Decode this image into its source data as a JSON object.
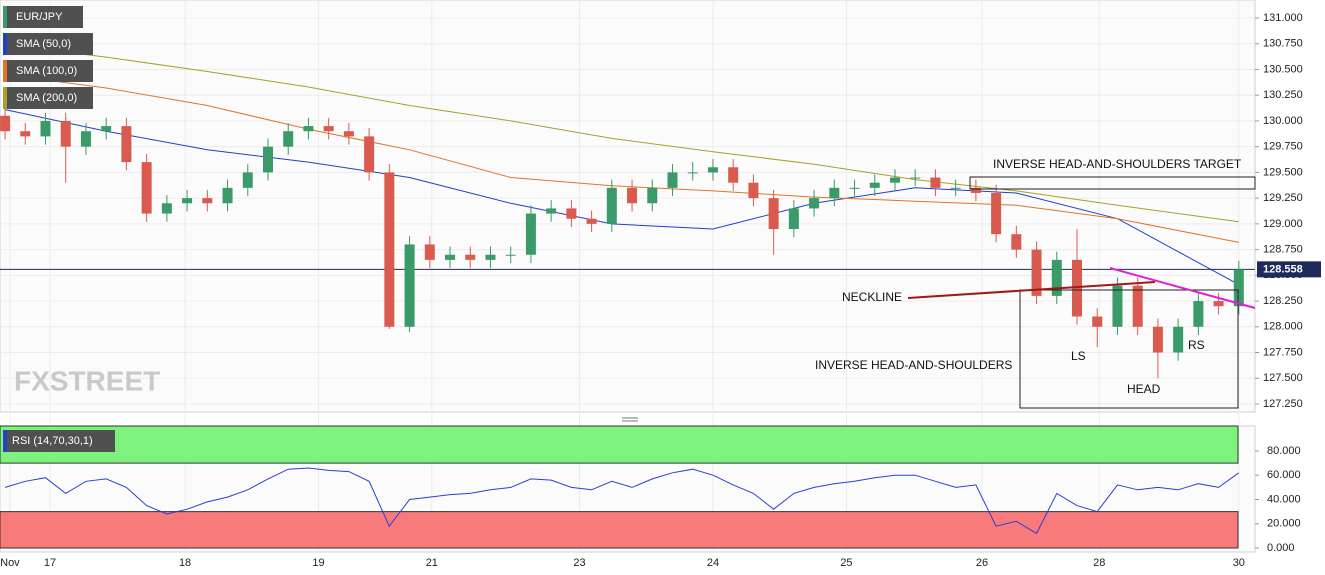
{
  "chart_data": [
    {
      "type": "candlestick",
      "symbol": "EUR/JPY",
      "up_color": "#3a9a68",
      "down_color": "#d95b50",
      "xlim": [
        -0.25,
        61.8
      ],
      "ylim": [
        127.172,
        131.175
      ],
      "xticks": [
        {
          "value": 0.24,
          "label": "Nov"
        },
        {
          "value": 2.22,
          "label": "17"
        },
        {
          "value": 8.9,
          "label": "18"
        },
        {
          "value": 15.5,
          "label": "19"
        },
        {
          "value": 21.1,
          "label": "21"
        },
        {
          "value": 28.4,
          "label": "23"
        },
        {
          "value": 35.0,
          "label": "24"
        },
        {
          "value": 41.6,
          "label": "25"
        },
        {
          "value": 48.3,
          "label": "26"
        },
        {
          "value": 54.1,
          "label": "28"
        },
        {
          "value": 61.0,
          "label": "30"
        }
      ],
      "yticks": [
        {
          "value": 127.25,
          "label": "127.250"
        },
        {
          "value": 127.5,
          "label": "127.500"
        },
        {
          "value": 127.75,
          "label": "127.750"
        },
        {
          "value": 128.0,
          "label": "128.000"
        },
        {
          "value": 128.25,
          "label": "128.250"
        },
        {
          "value": 128.5,
          "label": "128.500"
        },
        {
          "value": 128.75,
          "label": "128.750"
        },
        {
          "value": 129.0,
          "label": "129.000"
        },
        {
          "value": 129.25,
          "label": "129.250"
        },
        {
          "value": 129.5,
          "label": "129.500"
        },
        {
          "value": 129.75,
          "label": "129.750"
        },
        {
          "value": 130.0,
          "label": "130.000"
        },
        {
          "value": 130.25,
          "label": "130.250"
        },
        {
          "value": 130.5,
          "label": "130.500"
        },
        {
          "value": 130.75,
          "label": "130.750"
        },
        {
          "value": 131.0,
          "label": "131.000"
        }
      ],
      "grid": true,
      "last_price": 128.558,
      "open": [
        130.05,
        129.9,
        129.85,
        130.0,
        129.75,
        129.9,
        129.95,
        129.6,
        129.1,
        129.2,
        129.25,
        129.2,
        129.35,
        129.5,
        129.75,
        129.9,
        129.95,
        129.9,
        129.85,
        129.5,
        128.0,
        128.8,
        128.65,
        128.7,
        128.65,
        128.7,
        128.7,
        129.1,
        129.15,
        129.05,
        129.0,
        129.35,
        129.2,
        129.35,
        129.5,
        129.5,
        129.55,
        129.4,
        129.25,
        128.95,
        129.15,
        129.25,
        129.35,
        129.35,
        129.4,
        129.45,
        129.45,
        129.35,
        129.35,
        129.3,
        128.9,
        128.75,
        128.3,
        128.65,
        128.1,
        128.0,
        128.4,
        128.0,
        127.75,
        128.0,
        128.25,
        128.2
      ],
      "high": [
        130.13,
        129.98,
        130.08,
        130.08,
        129.98,
        130.03,
        130.03,
        129.68,
        129.28,
        129.33,
        129.33,
        129.43,
        129.58,
        129.83,
        129.98,
        130.03,
        130.03,
        129.98,
        129.93,
        129.58,
        128.88,
        128.88,
        128.78,
        128.78,
        128.78,
        128.78,
        129.18,
        129.23,
        129.23,
        129.13,
        129.43,
        129.43,
        129.43,
        129.58,
        129.6,
        129.63,
        129.63,
        129.48,
        129.33,
        129.23,
        129.33,
        129.43,
        129.43,
        129.48,
        129.53,
        129.53,
        129.53,
        129.43,
        129.43,
        129.38,
        128.98,
        128.83,
        128.73,
        128.95,
        128.18,
        128.48,
        128.48,
        128.08,
        128.08,
        128.33,
        128.33,
        128.64
      ],
      "low": [
        129.82,
        129.77,
        129.77,
        129.4,
        129.67,
        129.82,
        129.52,
        129.02,
        129.02,
        129.12,
        129.12,
        129.12,
        129.27,
        129.42,
        129.67,
        129.82,
        129.82,
        129.77,
        129.42,
        127.98,
        127.95,
        128.57,
        128.57,
        128.57,
        128.57,
        128.62,
        128.62,
        129.02,
        128.97,
        128.92,
        128.92,
        129.12,
        129.12,
        129.27,
        129.42,
        129.42,
        129.32,
        129.17,
        128.7,
        128.87,
        129.07,
        129.17,
        129.27,
        129.27,
        129.32,
        129.37,
        129.27,
        129.27,
        129.22,
        128.82,
        128.67,
        128.22,
        128.22,
        128.02,
        127.8,
        127.92,
        127.92,
        127.5,
        127.67,
        127.92,
        128.12,
        128.12
      ],
      "close": [
        129.9,
        129.85,
        130.0,
        129.75,
        129.9,
        129.95,
        129.6,
        129.1,
        129.2,
        129.25,
        129.2,
        129.35,
        129.5,
        129.75,
        129.9,
        129.95,
        129.9,
        129.85,
        129.5,
        128.0,
        128.8,
        128.65,
        128.7,
        128.65,
        128.7,
        128.7,
        129.1,
        129.15,
        129.05,
        129.0,
        129.35,
        129.2,
        129.35,
        129.5,
        129.5,
        129.55,
        129.4,
        129.25,
        128.95,
        129.15,
        129.25,
        129.35,
        129.35,
        129.4,
        129.45,
        129.45,
        129.35,
        129.35,
        129.3,
        128.9,
        128.75,
        128.3,
        128.65,
        128.1,
        128.0,
        128.4,
        128.0,
        127.75,
        128.0,
        128.25,
        128.2,
        128.558
      ],
      "series": [
        {
          "name": "SMA (50,0)",
          "color": "#2140c8",
          "x": [
            0,
            5,
            10,
            15,
            20,
            25,
            30,
            35,
            40,
            45,
            50,
            55,
            61
          ],
          "values": [
            130.11,
            129.9,
            129.72,
            129.6,
            129.45,
            129.2,
            129.0,
            128.95,
            129.2,
            129.35,
            129.3,
            129.05,
            128.41
          ]
        },
        {
          "name": "SMA (100,0)",
          "color": "#e0742a",
          "x": [
            0,
            5,
            10,
            15,
            20,
            25,
            30,
            35,
            40,
            45,
            50,
            55,
            61
          ],
          "values": [
            130.45,
            130.32,
            130.15,
            129.92,
            129.72,
            129.45,
            129.37,
            129.32,
            129.26,
            129.22,
            129.18,
            129.05,
            128.82
          ]
        },
        {
          "name": "SMA (200,0)",
          "color": "#a8a02a",
          "x": [
            0,
            5,
            10,
            15,
            20,
            25,
            30,
            35,
            40,
            45,
            50,
            55,
            61
          ],
          "values": [
            130.74,
            130.62,
            130.48,
            130.33,
            130.15,
            130.0,
            129.83,
            129.7,
            129.58,
            129.43,
            129.32,
            129.18,
            129.02
          ]
        }
      ],
      "annotations": {
        "target": "INVERSE HEAD-AND-SHOULDERS TARGET",
        "neckline": "NECKLINE",
        "pattern": "INVERSE HEAD-AND-SHOULDERS",
        "ls": "LS",
        "head": "HEAD",
        "rs": "RS"
      },
      "watermark": "FXSTREET"
    },
    {
      "type": "line",
      "name": "RSI (14,70,30,1)",
      "color": "#2a3fd0",
      "ylim": [
        -3.3,
        100.6
      ],
      "yticks": [
        {
          "value": 0,
          "label": "0.000"
        },
        {
          "value": 20,
          "label": "20.000"
        },
        {
          "value": 40,
          "label": "40.000"
        },
        {
          "value": 60,
          "label": "60.000"
        },
        {
          "value": 80,
          "label": "80.000"
        }
      ],
      "upper": 70,
      "lower": 30,
      "upper_color": "#7df27d",
      "lower_color": "#f87a7a",
      "values": [
        50,
        55,
        58,
        45,
        55,
        57,
        50,
        35,
        28,
        32,
        38,
        42,
        48,
        57,
        65,
        66,
        64,
        63,
        55,
        18,
        40,
        42,
        44,
        45,
        48,
        50,
        57,
        56,
        50,
        48,
        55,
        50,
        57,
        62,
        65,
        60,
        52,
        45,
        32,
        45,
        50,
        53,
        55,
        58,
        60,
        60,
        55,
        50,
        52,
        18,
        22,
        12,
        45,
        35,
        30,
        52,
        48,
        50,
        48,
        53,
        50,
        62
      ]
    }
  ]
}
